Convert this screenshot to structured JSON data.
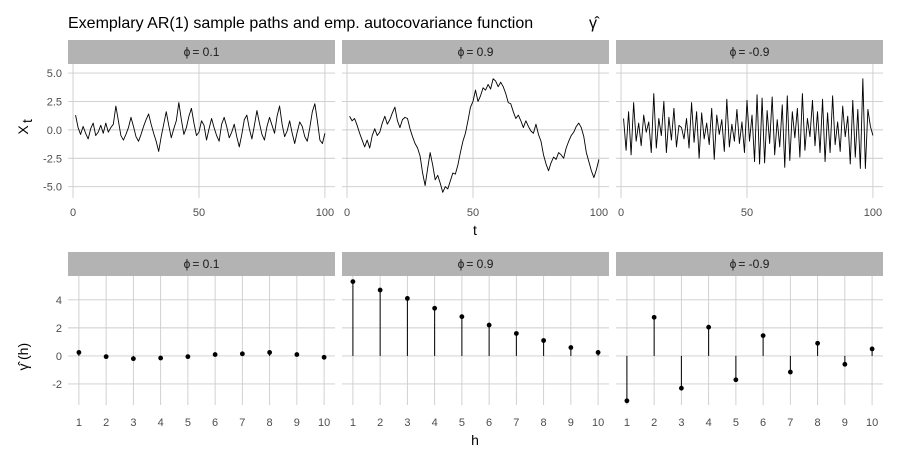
{
  "chart_data": {
    "type": "faceted-line-and-stem",
    "title": "Exemplary AR(1) sample paths and emp. autocovariance function",
    "title_symbol": "γ̂",
    "colors": {
      "strip_background": "#b3b3b3",
      "grid": "#cccccc",
      "line": "#000000",
      "text": "#1a1a1a",
      "tick_text": "#4d4d4d"
    },
    "facets": [
      {
        "phi_symbol": "ϕ",
        "phi_value": "= 0.1"
      },
      {
        "phi_symbol": "ϕ",
        "phi_value": "= 0.9"
      },
      {
        "phi_symbol": "ϕ",
        "phi_value": "= -0.9"
      }
    ],
    "top_row": {
      "type": "line",
      "xlabel": "t",
      "ylabel_main": "X",
      "ylabel_sub": "t",
      "xlim": [
        -2,
        104
      ],
      "ylim": [
        -6.0,
        5.8
      ],
      "x_ticks": [
        0,
        50,
        100
      ],
      "x_tick_labels": [
        "0",
        "50",
        "100"
      ],
      "y_ticks": [
        5.0,
        2.5,
        0.0,
        -2.5,
        -5.0
      ],
      "y_tick_labels": [
        "5.0",
        "2.5",
        "0.0",
        "-2.5",
        "-5.0"
      ],
      "series": [
        {
          "facet": 0,
          "t_start": 1,
          "values": [
            1.3,
            0.2,
            -0.4,
            0.3,
            -0.3,
            -0.8,
            0.1,
            0.6,
            -0.5,
            -0.2,
            0.4,
            -0.3,
            0.6,
            -0.2,
            0.2,
            0.5,
            2.1,
            0.8,
            -0.5,
            -0.9,
            -0.4,
            0.2,
            1.1,
            0.3,
            -0.6,
            -1.0,
            -0.4,
            0.3,
            0.9,
            1.4,
            0.5,
            -0.3,
            -1.0,
            -1.9,
            -0.6,
            0.5,
            1.6,
            0.4,
            -0.7,
            0.1,
            0.8,
            2.4,
            0.9,
            -0.4,
            0.2,
            1.2,
            1.9,
            0.6,
            -0.5,
            -0.2,
            0.8,
            0.4,
            -0.9,
            0.1,
            1.0,
            0.2,
            -0.5,
            -1.0,
            0.5,
            1.1,
            0.3,
            -0.7,
            -0.2,
            0.5,
            -0.6,
            -1.5,
            -0.4,
            0.9,
            1.3,
            0.1,
            -0.8,
            0.4,
            1.7,
            0.6,
            -0.4,
            -0.9,
            0.3,
            1.1,
            0.4,
            -0.3,
            1.2,
            2.1,
            0.5,
            -0.6,
            -0.1,
            0.8,
            -0.3,
            -1.2,
            -0.2,
            0.7,
            0.3,
            -0.6,
            -1.0,
            0.2,
            1.6,
            2.3,
            0.8,
            -0.9,
            -1.2,
            -0.3
          ]
        },
        {
          "facet": 1,
          "t_start": 1,
          "values": [
            1.2,
            0.8,
            1.0,
            0.4,
            -0.3,
            -0.9,
            -1.5,
            -0.9,
            -1.6,
            -0.5,
            0.1,
            -0.5,
            -0.2,
            0.6,
            1.2,
            0.5,
            0.9,
            1.5,
            2.0,
            0.8,
            0.2,
            0.9,
            1.1,
            1.0,
            0.1,
            -0.6,
            -1.2,
            -1.6,
            -2.3,
            -3.8,
            -4.9,
            -3.4,
            -2.0,
            -3.1,
            -4.4,
            -4.0,
            -4.7,
            -5.5,
            -5.0,
            -5.2,
            -4.5,
            -3.8,
            -3.9,
            -3.1,
            -2.0,
            -1.0,
            -0.3,
            0.8,
            2.0,
            2.5,
            3.5,
            2.5,
            3.0,
            3.7,
            3.5,
            4.0,
            3.6,
            4.5,
            4.3,
            3.8,
            4.2,
            3.8,
            3.2,
            2.4,
            2.3,
            1.6,
            1.0,
            1.3,
            0.8,
            0.2,
            0.8,
            0.3,
            -0.1,
            -0.3,
            0.5,
            -0.4,
            -1.0,
            -2.2,
            -3.0,
            -3.6,
            -2.9,
            -2.4,
            -2.6,
            -2.0,
            -2.2,
            -2.5,
            -1.6,
            -1.0,
            -0.5,
            -0.2,
            0.3,
            0.6,
            0.2,
            -0.6,
            -2.0,
            -2.8,
            -3.6,
            -4.2,
            -3.5,
            -2.6
          ]
        },
        {
          "facet": 2,
          "t_start": 1,
          "values": [
            1.0,
            -1.8,
            1.6,
            -2.2,
            2.4,
            -1.0,
            0.6,
            -1.4,
            1.3,
            -0.2,
            0.7,
            -2.0,
            3.2,
            -1.6,
            1.0,
            -0.5,
            2.5,
            -2.0,
            1.1,
            -0.9,
            1.9,
            -1.5,
            0.4,
            0.2,
            -0.8,
            1.0,
            -1.6,
            2.4,
            -1.1,
            1.6,
            -2.5,
            1.5,
            -0.8,
            0.6,
            -1.3,
            1.9,
            -2.6,
            1.3,
            -0.4,
            0.9,
            -1.9,
            2.7,
            -1.5,
            0.5,
            -1.0,
            1.8,
            -1.2,
            0.7,
            -2.0,
            2.6,
            -1.0,
            1.3,
            -2.8,
            3.1,
            -3.0,
            2.8,
            -2.9,
            1.7,
            -1.2,
            2.9,
            -2.2,
            0.9,
            -1.5,
            2.2,
            -3.3,
            3.0,
            -2.7,
            1.6,
            -0.7,
            1.9,
            -2.4,
            3.2,
            -1.8,
            1.0,
            -0.6,
            2.6,
            -1.4,
            1.6,
            -2.0,
            2.7,
            -2.8,
            1.5,
            -2.0,
            3.0,
            -1.3,
            0.7,
            -1.9,
            2.1,
            -0.6,
            1.2,
            -3.0,
            2.6,
            -2.4,
            1.8,
            -3.4,
            4.5,
            -3.4,
            1.8,
            0.3,
            -0.5
          ]
        }
      ]
    },
    "bottom_row": {
      "type": "stem",
      "xlabel": "h",
      "ylabel_symbol": "γ̂",
      "ylabel_suffix": "(h)",
      "xlim": [
        0.6,
        10.4
      ],
      "ylim": [
        -3.5,
        5.7
      ],
      "x_ticks": [
        1,
        2,
        3,
        4,
        5,
        6,
        7,
        8,
        9,
        10
      ],
      "x_tick_labels": [
        "1",
        "2",
        "3",
        "4",
        "5",
        "6",
        "7",
        "8",
        "9",
        "10"
      ],
      "y_ticks": [
        4,
        2,
        0,
        -2
      ],
      "y_tick_labels": [
        "4",
        "2",
        "0",
        "-2"
      ],
      "series": [
        {
          "facet": 0,
          "lags": [
            1,
            2,
            3,
            4,
            5,
            6,
            7,
            8,
            9,
            10
          ],
          "values": [
            0.25,
            -0.05,
            -0.2,
            -0.15,
            -0.05,
            0.1,
            0.15,
            0.25,
            0.1,
            -0.1
          ]
        },
        {
          "facet": 1,
          "lags": [
            1,
            2,
            3,
            4,
            5,
            6,
            7,
            8,
            9,
            10
          ],
          "values": [
            5.3,
            4.7,
            4.1,
            3.4,
            2.8,
            2.2,
            1.6,
            1.1,
            0.6,
            0.25
          ]
        },
        {
          "facet": 2,
          "lags": [
            1,
            2,
            3,
            4,
            5,
            6,
            7,
            8,
            9,
            10
          ],
          "values": [
            -3.2,
            2.75,
            -2.3,
            2.05,
            -1.7,
            1.45,
            -1.15,
            0.9,
            -0.6,
            0.5
          ]
        }
      ]
    }
  }
}
